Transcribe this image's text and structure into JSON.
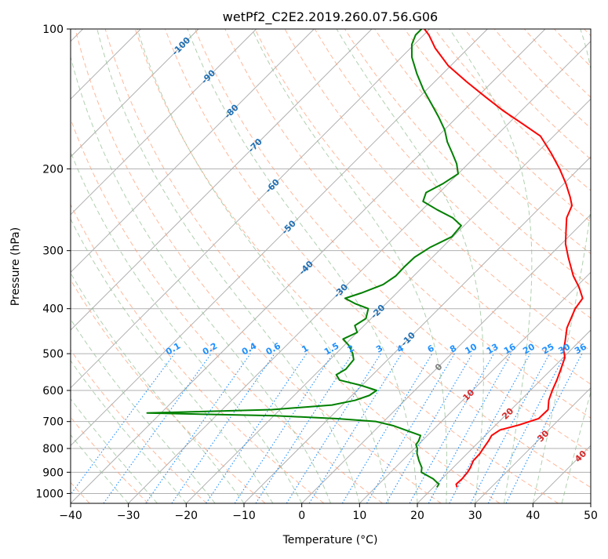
{
  "chart_data": {
    "type": "skew-t",
    "title": "wetPf2_C2E2.2019.260.07.56.G06",
    "xlabel": "Temperature (°C)",
    "ylabel": "Pressure (hPa)",
    "xlim": [
      -40,
      50
    ],
    "ylim": [
      1050,
      100
    ],
    "y_scale": "log",
    "skew": 45,
    "x_ticks": [
      -40,
      -30,
      -20,
      -10,
      0,
      10,
      20,
      30,
      40,
      50
    ],
    "x_tick_labels": [
      "−40",
      "−30",
      "−20",
      "−10",
      "0",
      "10",
      "20",
      "30",
      "40",
      "50"
    ],
    "y_ticks": [
      100,
      200,
      300,
      400,
      500,
      600,
      700,
      800,
      900,
      1000
    ],
    "y_tick_labels": [
      "100",
      "200",
      "300",
      "400",
      "500",
      "600",
      "700",
      "800",
      "900",
      "1000"
    ],
    "grid": true,
    "series": [
      {
        "key": "temperature",
        "color": "#ff0000",
        "points": [
          [
            970,
            24.1
          ],
          [
            955,
            23.4
          ],
          [
            930,
            23.5
          ],
          [
            900,
            23.3
          ],
          [
            880,
            23.0
          ],
          [
            850,
            22.3
          ],
          [
            820,
            22.2
          ],
          [
            800,
            21.9
          ],
          [
            770,
            21.5
          ],
          [
            750,
            21.1
          ],
          [
            730,
            21.6
          ],
          [
            712,
            24.0
          ],
          [
            690,
            26.3
          ],
          [
            660,
            26.4
          ],
          [
            630,
            24.9
          ],
          [
            600,
            23.8
          ],
          [
            570,
            22.8
          ],
          [
            540,
            21.6
          ],
          [
            510,
            20.3
          ],
          [
            490,
            18.7
          ],
          [
            470,
            17.5
          ],
          [
            440,
            15.5
          ],
          [
            400,
            13.6
          ],
          [
            380,
            13.1
          ],
          [
            360,
            10.6
          ],
          [
            340,
            7.6
          ],
          [
            310,
            3.5
          ],
          [
            290,
            0.7
          ],
          [
            270,
            -1.7
          ],
          [
            255,
            -3.6
          ],
          [
            240,
            -4.8
          ],
          [
            230,
            -6.6
          ],
          [
            215,
            -9.7
          ],
          [
            200,
            -13.3
          ],
          [
            185,
            -17.5
          ],
          [
            170,
            -22.3
          ],
          [
            160,
            -27.5
          ],
          [
            150,
            -33.1
          ],
          [
            140,
            -38.6
          ],
          [
            130,
            -44.4
          ],
          [
            120,
            -50.4
          ],
          [
            110,
            -55.7
          ],
          [
            103,
            -59.1
          ],
          [
            100,
            -60.9
          ]
        ]
      },
      {
        "key": "dewpoint",
        "color": "#008000",
        "points": [
          [
            970,
            20.6
          ],
          [
            955,
            20.4
          ],
          [
            930,
            18.5
          ],
          [
            900,
            15.3
          ],
          [
            880,
            14.6
          ],
          [
            850,
            12.9
          ],
          [
            820,
            11.3
          ],
          [
            800,
            10.5
          ],
          [
            785,
            9.6
          ],
          [
            770,
            9.4
          ],
          [
            750,
            8.8
          ],
          [
            735,
            6.1
          ],
          [
            715,
            2.5
          ],
          [
            700,
            -1.3
          ],
          [
            690,
            -8.5
          ],
          [
            680,
            -19.9
          ],
          [
            671,
            -42.4
          ],
          [
            660,
            -21.4
          ],
          [
            645,
            -11.8
          ],
          [
            630,
            -8.6
          ],
          [
            615,
            -7.0
          ],
          [
            600,
            -6.6
          ],
          [
            585,
            -10.2
          ],
          [
            570,
            -14.8
          ],
          [
            555,
            -16.3
          ],
          [
            540,
            -15.6
          ],
          [
            515,
            -15.9
          ],
          [
            500,
            -17.1
          ],
          [
            480,
            -19.2
          ],
          [
            465,
            -21.3
          ],
          [
            450,
            -20.0
          ],
          [
            435,
            -21.6
          ],
          [
            420,
            -20.9
          ],
          [
            400,
            -22.2
          ],
          [
            390,
            -25.4
          ],
          [
            380,
            -28.0
          ],
          [
            370,
            -26.1
          ],
          [
            355,
            -23.8
          ],
          [
            340,
            -23.1
          ],
          [
            325,
            -23.2
          ],
          [
            310,
            -23.1
          ],
          [
            295,
            -22.1
          ],
          [
            280,
            -20.2
          ],
          [
            265,
            -20.5
          ],
          [
            255,
            -23.3
          ],
          [
            245,
            -27.4
          ],
          [
            235,
            -31.3
          ],
          [
            225,
            -32.3
          ],
          [
            215,
            -30.9
          ],
          [
            205,
            -30.0
          ],
          [
            195,
            -32.0
          ],
          [
            185,
            -34.6
          ],
          [
            175,
            -37.4
          ],
          [
            165,
            -39.9
          ],
          [
            155,
            -43.1
          ],
          [
            145,
            -46.7
          ],
          [
            135,
            -50.6
          ],
          [
            125,
            -54.4
          ],
          [
            115,
            -58.2
          ],
          [
            108,
            -60.4
          ],
          [
            103,
            -61.4
          ],
          [
            100,
            -61.4
          ]
        ]
      }
    ],
    "mixing_ratio_labels": [
      "0.1",
      "0.2",
      "0.4",
      "0.6",
      "1",
      "1.5",
      "2",
      "3",
      "4",
      "6",
      "8",
      "10",
      "13",
      "16",
      "20",
      "25",
      "30",
      "36"
    ],
    "mixing_ratio_values": [
      0.1,
      0.2,
      0.4,
      0.6,
      1,
      1.5,
      2,
      3,
      4,
      6,
      8,
      10,
      13,
      16,
      20,
      25,
      30,
      36
    ],
    "moist_adiabat_labels": [
      "-100",
      "-90",
      "-80",
      "-70",
      "-60",
      "-50",
      "-40",
      "-30",
      "-20",
      "-10"
    ],
    "moist_adiabat_labels_warm": [
      "0",
      "10",
      "20",
      "30",
      "40"
    ],
    "colors": {
      "isotherm": "#b0b0b0",
      "dry_adiabat": "#ffa07a",
      "moist_adiabat": "#8fbc8f",
      "mixing_ratio": "#1e90ff",
      "label_cold": "#1f6fb4",
      "label_warm": "#d62728",
      "label_zero": "#808080",
      "title": "#000000"
    }
  }
}
